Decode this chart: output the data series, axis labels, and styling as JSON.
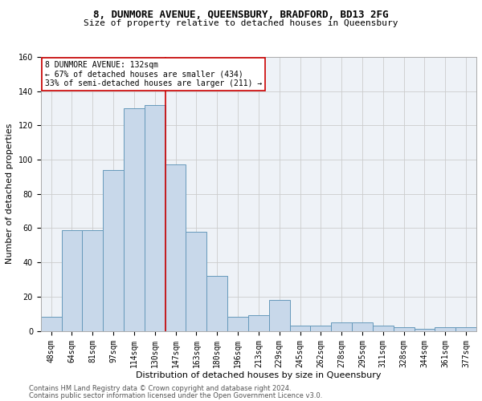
{
  "title_line1": "8, DUNMORE AVENUE, QUEENSBURY, BRADFORD, BD13 2FG",
  "title_line2": "Size of property relative to detached houses in Queensbury",
  "xlabel": "Distribution of detached houses by size in Queensbury",
  "ylabel": "Number of detached properties",
  "bar_color": "#c8d8ea",
  "bar_edge_color": "#6699bb",
  "categories": [
    "48sqm",
    "64sqm",
    "81sqm",
    "97sqm",
    "114sqm",
    "130sqm",
    "147sqm",
    "163sqm",
    "180sqm",
    "196sqm",
    "213sqm",
    "229sqm",
    "245sqm",
    "262sqm",
    "278sqm",
    "295sqm",
    "311sqm",
    "328sqm",
    "344sqm",
    "361sqm",
    "377sqm"
  ],
  "values": [
    8,
    59,
    59,
    94,
    130,
    132,
    97,
    58,
    32,
    8,
    9,
    18,
    3,
    3,
    5,
    5,
    3,
    2,
    1,
    2,
    2
  ],
  "vline_index": 5,
  "vline_color": "#cc0000",
  "annotation_line1": "8 DUNMORE AVENUE: 132sqm",
  "annotation_line2": "← 67% of detached houses are smaller (434)",
  "annotation_line3": "33% of semi-detached houses are larger (211) →",
  "annotation_box_color": "white",
  "annotation_border_color": "#cc0000",
  "ylim": [
    0,
    160
  ],
  "yticks": [
    0,
    20,
    40,
    60,
    80,
    100,
    120,
    140,
    160
  ],
  "grid_color": "#cccccc",
  "background_color": "#eef2f7",
  "footer_line1": "Contains HM Land Registry data © Crown copyright and database right 2024.",
  "footer_line2": "Contains public sector information licensed under the Open Government Licence v3.0.",
  "title_fontsize": 9,
  "subtitle_fontsize": 8,
  "xlabel_fontsize": 8,
  "ylabel_fontsize": 8,
  "tick_fontsize": 7,
  "annotation_fontsize": 7,
  "footer_fontsize": 6
}
